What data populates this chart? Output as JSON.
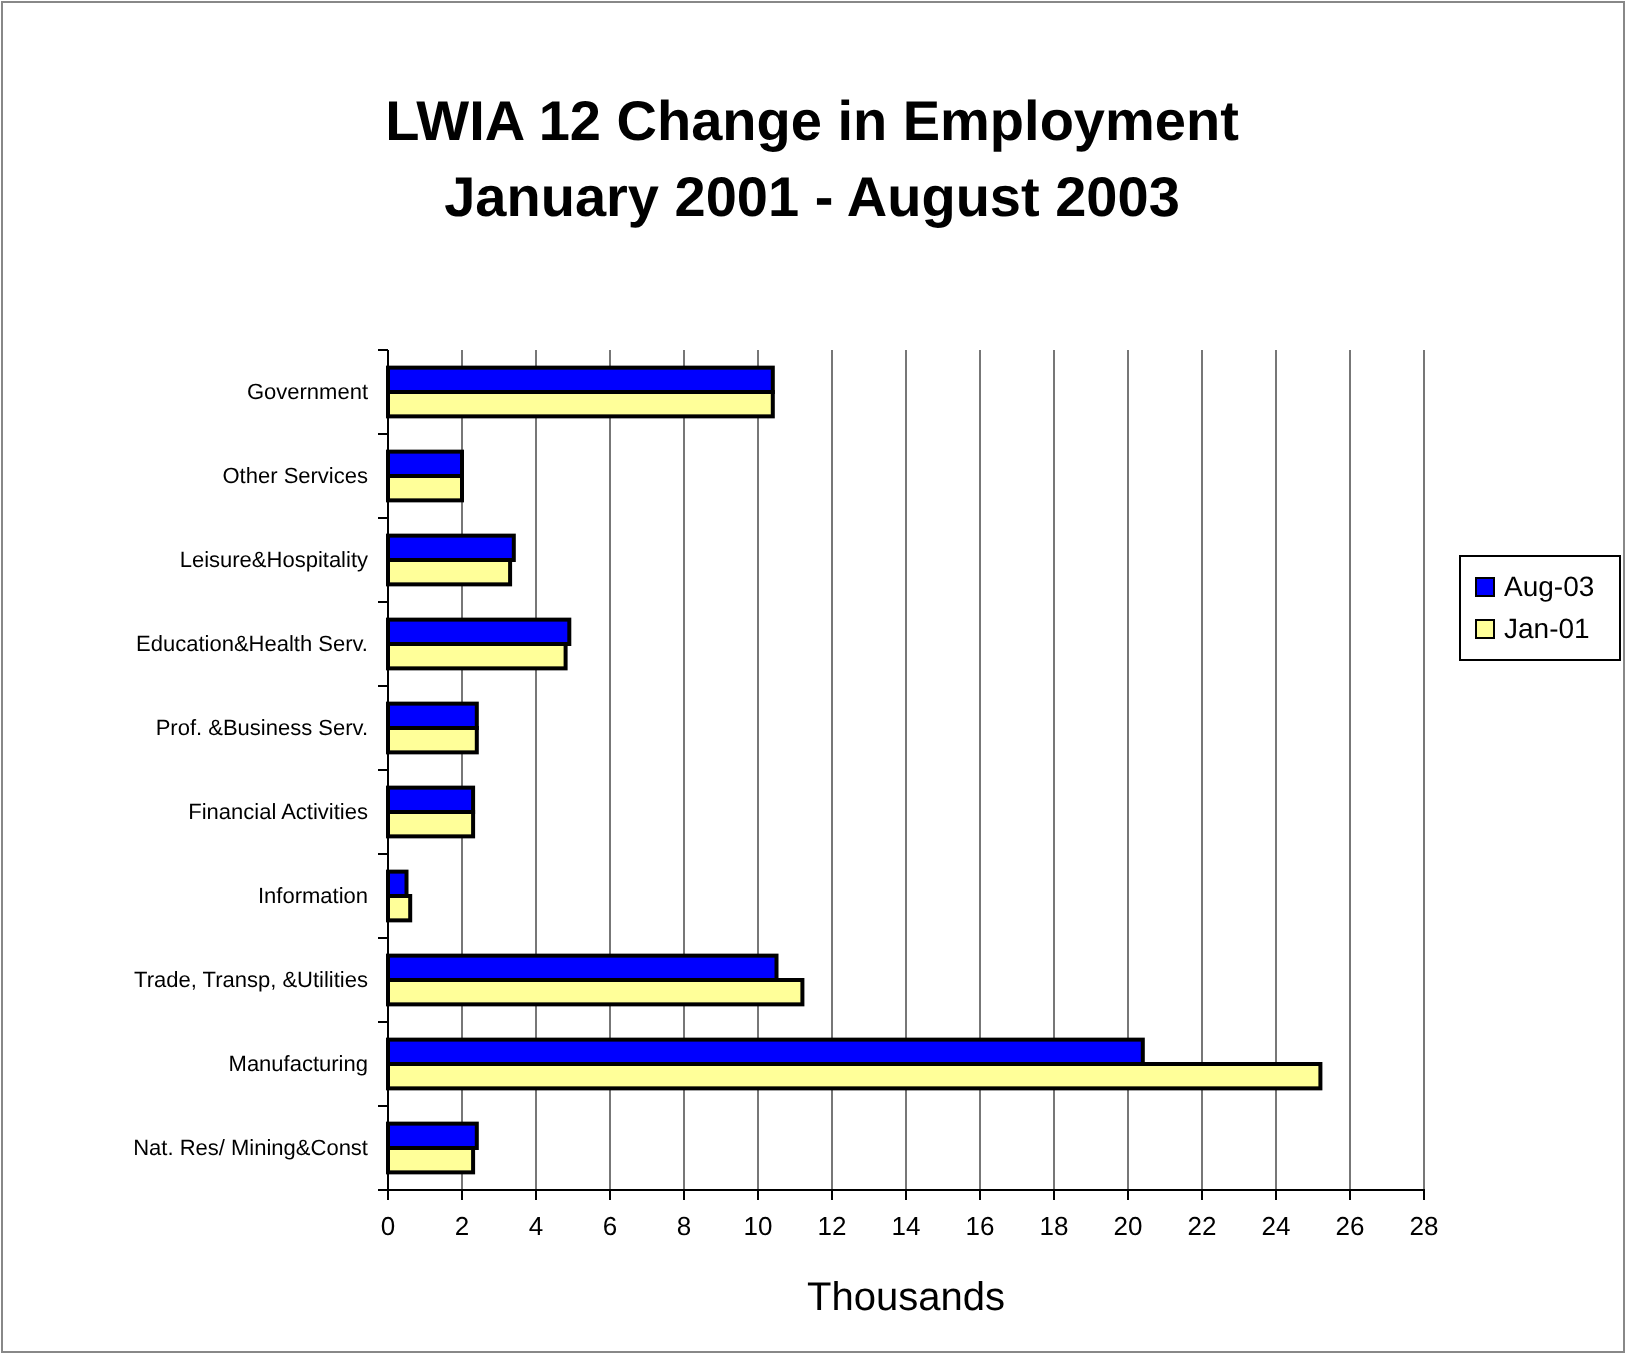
{
  "chart_data": {
    "type": "bar",
    "orientation": "horizontal",
    "title": "LWIA 12 Change in Employment\nJanuary 2001 - August 2003",
    "xlabel": "Thousands",
    "categories": [
      "Government",
      "Other Services",
      "Leisure&Hospitality",
      "Education&Health Serv.",
      "Prof. &Business Serv.",
      "Financial Activities",
      "Information",
      "Trade, Transp, &Utilities",
      "Manufacturing",
      "Nat. Res/ Mining&Const"
    ],
    "series": [
      {
        "name": "Aug-03",
        "color": "#0000ff",
        "values": [
          10.4,
          2.0,
          3.4,
          4.9,
          2.4,
          2.3,
          0.5,
          10.5,
          20.4,
          2.4
        ]
      },
      {
        "name": "Jan-01",
        "color": "#ffff99",
        "values": [
          10.4,
          2.0,
          3.3,
          4.8,
          2.4,
          2.3,
          0.6,
          11.2,
          25.2,
          2.3
        ]
      }
    ],
    "xlim": [
      0,
      28
    ],
    "xticks": [
      0,
      2,
      4,
      6,
      8,
      10,
      12,
      14,
      16,
      18,
      20,
      22,
      24,
      26,
      28
    ],
    "grid": "x",
    "legend": "right"
  }
}
